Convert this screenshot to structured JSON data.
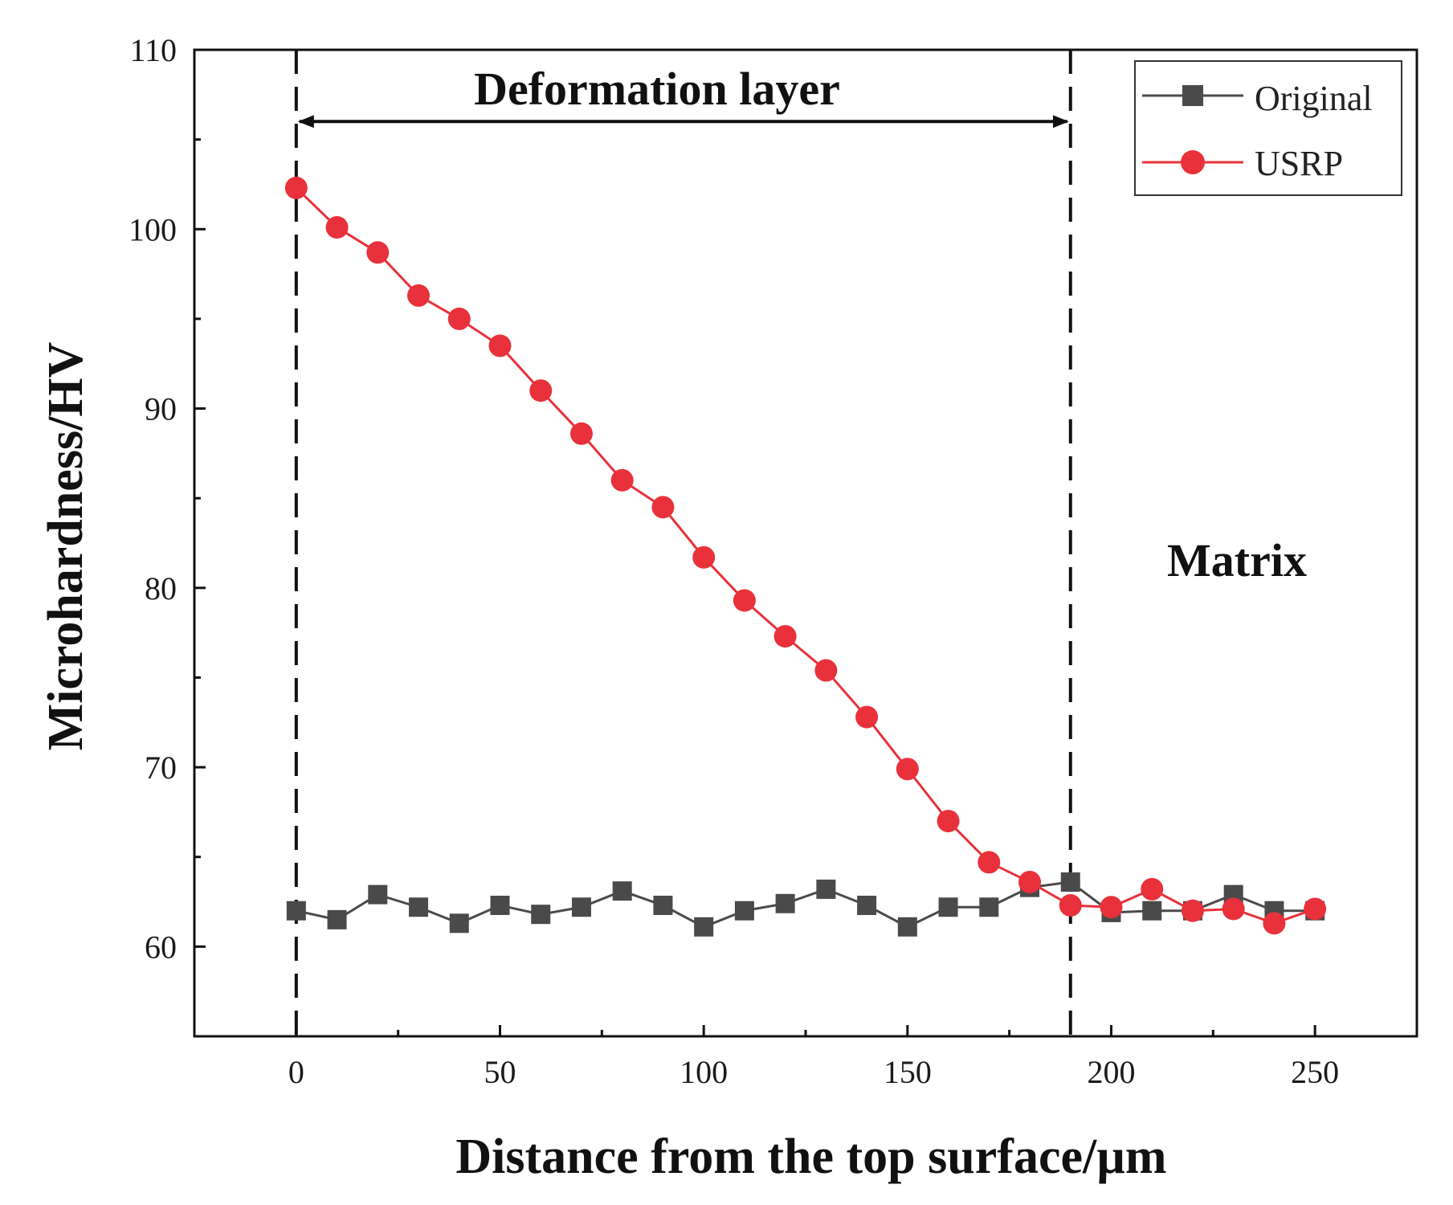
{
  "chart_data": {
    "type": "line",
    "title": "",
    "xlabel": "Distance from the top surface/µm",
    "ylabel": "Microhardness/HV",
    "xlim": [
      -25,
      275
    ],
    "ylim": [
      55,
      110
    ],
    "x_ticks": [
      0,
      50,
      100,
      150,
      200,
      250
    ],
    "y_ticks": [
      60,
      70,
      80,
      90,
      100,
      110
    ],
    "grid": false,
    "legend_position": "top-right",
    "x": [
      0,
      10,
      20,
      30,
      40,
      50,
      60,
      70,
      80,
      90,
      100,
      110,
      120,
      130,
      140,
      150,
      160,
      170,
      180,
      190,
      200,
      210,
      220,
      230,
      240,
      250
    ],
    "series": [
      {
        "name": "Original",
        "color": "#4a4a4a",
        "marker": "square",
        "values": [
          62.0,
          61.5,
          62.9,
          62.2,
          61.3,
          62.3,
          61.8,
          62.2,
          63.1,
          62.3,
          61.1,
          62.0,
          62.4,
          63.2,
          62.3,
          61.1,
          62.2,
          62.2,
          63.3,
          63.6,
          61.9,
          62.0,
          62.0,
          62.9,
          62.0,
          62.0
        ]
      },
      {
        "name": "USRP",
        "color": "#e8313a",
        "marker": "circle",
        "values": [
          102.3,
          100.1,
          98.7,
          96.3,
          95.0,
          93.5,
          91.0,
          88.6,
          86.0,
          84.5,
          81.7,
          79.3,
          77.3,
          75.4,
          72.8,
          69.9,
          67.0,
          64.7,
          63.6,
          62.3,
          62.2,
          63.2,
          62.0,
          62.1,
          61.3,
          62.1
        ]
      }
    ],
    "annotations": {
      "region_label": "Deformation layer",
      "matrix_label": "Matrix",
      "boundary_x": [
        0,
        190
      ]
    }
  }
}
